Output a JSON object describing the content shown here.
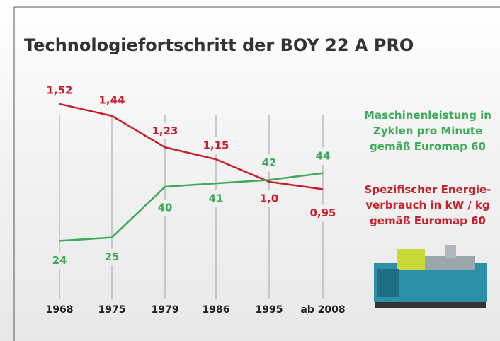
{
  "chart_data": {
    "type": "line",
    "title": "Technologiefortschritt der BOY 22 A PRO",
    "categories": [
      "1968",
      "1975",
      "1979",
      "1986",
      "1995",
      "ab 2008"
    ],
    "series": [
      {
        "name": "Spezifischer Energie-\nverbrauch in kW / kg\ngemäß Euromap 60",
        "color": "#c8202a",
        "values": [
          1.52,
          1.44,
          1.23,
          1.15,
          1.0,
          0.95
        ],
        "value_labels": [
          "1,52",
          "1,44",
          "1,23",
          "1,15",
          "1,0",
          "0,95"
        ]
      },
      {
        "name": "Maschinenleistung in\nZyklen pro Minute\ngemäß Euromap 60",
        "color": "#3daa5a",
        "axis": "y2",
        "values": [
          24,
          25,
          40,
          41,
          42,
          44
        ]
      }
    ],
    "ylim": [
      0.56,
      1.6
    ],
    "y2lim": [
      22,
      68
    ]
  }
}
